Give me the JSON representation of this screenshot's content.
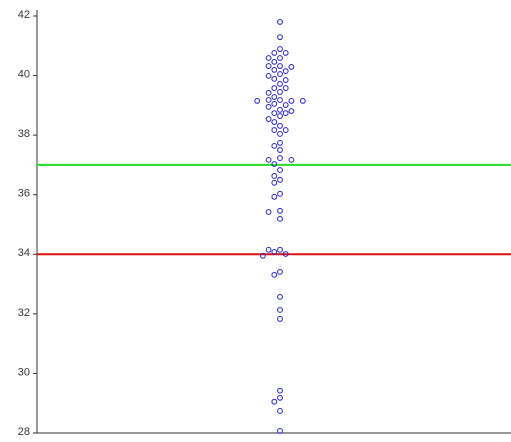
{
  "chart_data": {
    "type": "beeswarm",
    "values": [
      41.8,
      41.29,
      40.89,
      40.76,
      40.76,
      40.59,
      40.59,
      40.46,
      40.32,
      40.32,
      40.29,
      40.19,
      40.15,
      40.05,
      39.99,
      39.89,
      39.85,
      39.72,
      39.58,
      39.58,
      39.45,
      39.42,
      39.28,
      39.18,
      39.18,
      39.15,
      39.15,
      39.15,
      39.05,
      39.01,
      38.95,
      38.85,
      38.81,
      38.74,
      38.74,
      38.64,
      38.54,
      38.44,
      38.31,
      38.17,
      38.17,
      38.04,
      37.74,
      37.64,
      37.5,
      37.23,
      37.17,
      37.17,
      37.03,
      36.83,
      36.63,
      36.5,
      36.4,
      36.03,
      35.93,
      35.46,
      35.42,
      35.19,
      34.15,
      34.15,
      34.08,
      34.01,
      33.95,
      33.41,
      33.31,
      32.57,
      32.13,
      31.83,
      29.42,
      29.18,
      29.05,
      28.74,
      28.07
    ],
    "color": "#2222cc",
    "ylim": [
      28,
      42
    ],
    "yticks": [
      28,
      30,
      32,
      34,
      36,
      38,
      40,
      42
    ],
    "hlines": [
      {
        "value": 37,
        "color": "#22dd22"
      },
      {
        "value": 34,
        "color": "#dd1111"
      }
    ]
  }
}
